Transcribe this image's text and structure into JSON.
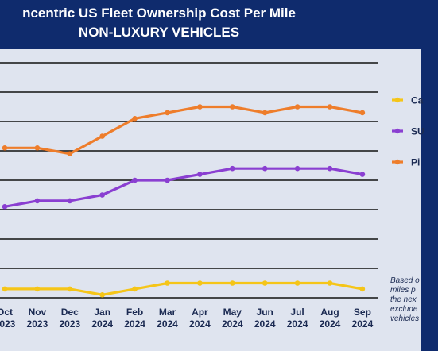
{
  "title_line1": "ncentric US Fleet Ownership Cost Per Mile",
  "title_line2": "NON-LUXURY VEHICLES",
  "note_lines": [
    "Based o",
    "miles p",
    "the nex",
    "exclude",
    "vehicles"
  ],
  "colors": {
    "background": "#0f2b6d",
    "panel": "#dfe4ef",
    "gridline": "#111111",
    "car": "#f5c518",
    "suv": "#8a3fd1",
    "pickup": "#ee7d2b"
  },
  "chart_data": {
    "type": "line",
    "title": "ncentric US Fleet Ownership Cost Per Mile — NON-LUXURY VEHICLES",
    "x": [
      "Oct 2023",
      "Nov 2023",
      "Dec 2023",
      "Jan 2024",
      "Feb 2024",
      "Mar 2024",
      "Apr 2024",
      "May 2024",
      "Jun 2024",
      "Jul 2024",
      "Aug 2024",
      "Sep 2024"
    ],
    "x_month": [
      "Oct",
      "Nov",
      "Dec",
      "Jan",
      "Feb",
      "Mar",
      "Apr",
      "May",
      "Jun",
      "Jul",
      "Aug",
      "Sep"
    ],
    "x_year": [
      "2023",
      "2023",
      "2023",
      "2024",
      "2024",
      "2024",
      "2024",
      "2024",
      "2024",
      "2024",
      "2024",
      "2024"
    ],
    "ylim": [
      0,
      8
    ],
    "grid_lines": 8,
    "legend_position": "right (partially cropped)",
    "series": [
      {
        "name": "Ca",
        "color": "#f5c518",
        "values": [
          0.3,
          0.3,
          0.3,
          0.1,
          0.3,
          0.5,
          0.5,
          0.5,
          0.5,
          0.5,
          0.5,
          0.3
        ]
      },
      {
        "name": "SU",
        "color": "#8a3fd1",
        "values": [
          3.1,
          3.3,
          3.3,
          3.5,
          4.0,
          4.0,
          4.2,
          4.4,
          4.4,
          4.4,
          4.4,
          4.2
        ]
      },
      {
        "name": "Pi",
        "color": "#ee7d2b",
        "values": [
          5.1,
          5.1,
          4.9,
          5.5,
          6.1,
          6.3,
          6.5,
          6.5,
          6.3,
          6.5,
          6.5,
          6.3
        ]
      }
    ]
  }
}
